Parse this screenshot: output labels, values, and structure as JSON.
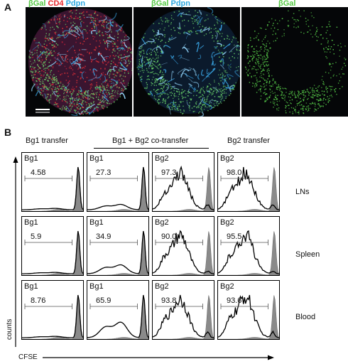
{
  "panel_a": {
    "letter": "A",
    "images": [
      {
        "title_parts": [
          {
            "text": "βGal ",
            "color": "#55c845"
          },
          {
            "text": "CD4 ",
            "color": "#e8282d"
          },
          {
            "text": "Pdpn",
            "color": "#2fa7e0"
          }
        ],
        "stain": "merge3"
      },
      {
        "title_parts": [
          {
            "text": "βGal ",
            "color": "#55c845"
          },
          {
            "text": "Pdpn",
            "color": "#2fa7e0"
          }
        ],
        "stain": "merge2"
      },
      {
        "title_parts": [
          {
            "text": "βGal",
            "color": "#55c845"
          }
        ],
        "stain": "green"
      }
    ]
  },
  "panel_b": {
    "letter": "B",
    "column_headers": [
      "Bg1 transfer",
      "Bg1 + Bg2 co-transfer",
      "Bg2 transfer"
    ],
    "row_labels": [
      "LNs",
      "Spleen",
      "Blood"
    ],
    "y_axis_label": "counts",
    "x_axis_label": "CFSE",
    "rows": [
      {
        "cells": [
          {
            "label": "Bg1",
            "value": "4.58"
          },
          {
            "label": "Bg1",
            "value": "27.3"
          },
          {
            "label": "Bg2",
            "value": "97.3"
          },
          {
            "label": "Bg2",
            "value": "98.0"
          }
        ]
      },
      {
        "cells": [
          {
            "label": "Bg1",
            "value": "5.9"
          },
          {
            "label": "Bg1",
            "value": "34.9"
          },
          {
            "label": "Bg2",
            "value": "90.0"
          },
          {
            "label": "Bg2",
            "value": "95.5"
          }
        ]
      },
      {
        "cells": [
          {
            "label": "Bg1",
            "value": "8.76"
          },
          {
            "label": "Bg1",
            "value": "65.9"
          },
          {
            "label": "Bg2",
            "value": "93.8"
          },
          {
            "label": "Bg2",
            "value": "93.6"
          }
        ]
      }
    ]
  }
}
